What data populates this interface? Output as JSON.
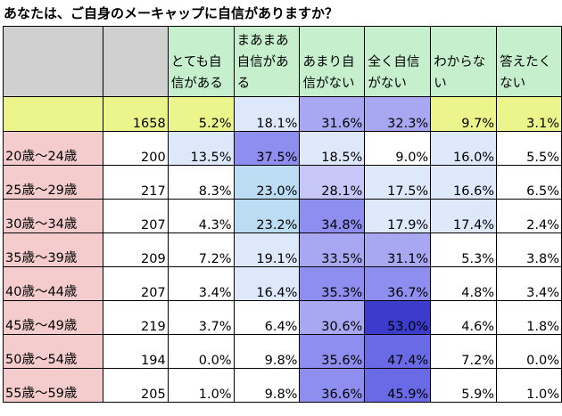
{
  "title": "あなたは、ご自身のメーキャップに自信がありますか？",
  "colors": {
    "header_gray": "#d0d0d0",
    "header_green": "#c6efce",
    "total_row": "#ebf58b",
    "age_label": "#f4cccc",
    "heat_scale": [
      "#ffffff",
      "#dde9fa",
      "#bcdcf4",
      "#c6c6f8",
      "#a8a8f2",
      "#8e8ef0",
      "#6a6ae6",
      "#3b3bcc"
    ]
  },
  "chart_data": {
    "type": "table",
    "title": "あなたは、ご自身のメーキャップに自信がありますか？",
    "columns": [
      "",
      "",
      "とても自信がある",
      "まあまあ自信がある",
      "あまり自信がない",
      "全く自信がない",
      "わからない",
      "答えたくない"
    ],
    "header_lines": [
      [],
      [],
      [
        "とても自",
        "信がある"
      ],
      [
        "まあまあ",
        "自信があ",
        "る"
      ],
      [
        "あまり自",
        "信がない"
      ],
      [
        "全く自信",
        "がない"
      ],
      [
        "わからな",
        "い"
      ],
      [
        "答えたく",
        "ない"
      ]
    ],
    "rows": [
      {
        "label": "",
        "n": "1658",
        "values": [
          "5.2%",
          "18.1%",
          "31.6%",
          "32.3%",
          "9.7%",
          "3.1%"
        ]
      },
      {
        "label": "20歳～24歳",
        "n": "200",
        "values": [
          "13.5%",
          "37.5%",
          "18.5%",
          "9.0%",
          "16.0%",
          "5.5%"
        ]
      },
      {
        "label": "25歳～29歳",
        "n": "217",
        "values": [
          "8.3%",
          "23.0%",
          "28.1%",
          "17.5%",
          "16.6%",
          "6.5%"
        ]
      },
      {
        "label": "30歳～34歳",
        "n": "207",
        "values": [
          "4.3%",
          "23.2%",
          "34.8%",
          "17.9%",
          "17.4%",
          "2.4%"
        ]
      },
      {
        "label": "35歳～39歳",
        "n": "209",
        "values": [
          "7.2%",
          "19.1%",
          "33.5%",
          "31.1%",
          "5.3%",
          "3.8%"
        ]
      },
      {
        "label": "40歳～44歳",
        "n": "207",
        "values": [
          "3.4%",
          "16.4%",
          "35.3%",
          "36.7%",
          "4.8%",
          "3.4%"
        ]
      },
      {
        "label": "45歳～49歳",
        "n": "219",
        "values": [
          "3.7%",
          "6.4%",
          "30.6%",
          "53.0%",
          "4.6%",
          "1.8%"
        ]
      },
      {
        "label": "50歳～54歳",
        "n": "194",
        "values": [
          "0.0%",
          "9.8%",
          "35.6%",
          "47.4%",
          "7.2%",
          "0.0%"
        ]
      },
      {
        "label": "55歳～59歳",
        "n": "205",
        "values": [
          "1.0%",
          "9.8%",
          "36.6%",
          "45.9%",
          "5.9%",
          "1.0%"
        ]
      }
    ]
  }
}
